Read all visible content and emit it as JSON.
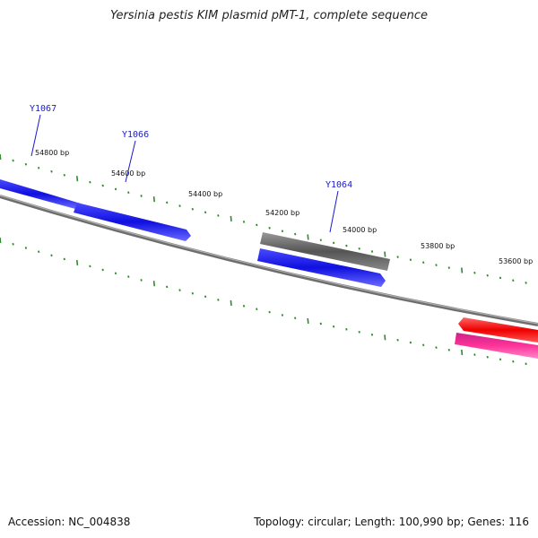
{
  "title": "Yersinia pestis KIM plasmid pMT-1, complete sequence",
  "footer": {
    "accession": "Accession: NC_004838",
    "summary": "Topology: circular; Length: 100,990 bp; Genes: 116"
  },
  "ruler": {
    "labels": [
      "54800 bp",
      "54600 bp",
      "54400 bp",
      "54200 bp",
      "54000 bp",
      "53800 bp",
      "53600 bp"
    ]
  },
  "genes": {
    "labels": [
      "Y1067",
      "Y1066",
      "Y1064"
    ]
  },
  "colors": {
    "tick": "#2e8b2e",
    "backbone": "#7a7a7a",
    "gene_blue": "#1010e0",
    "gene_gray": "#666666",
    "gene_red": "#ee1111",
    "gene_pink": "#ff3399",
    "label_blue": "#1a1acc"
  }
}
